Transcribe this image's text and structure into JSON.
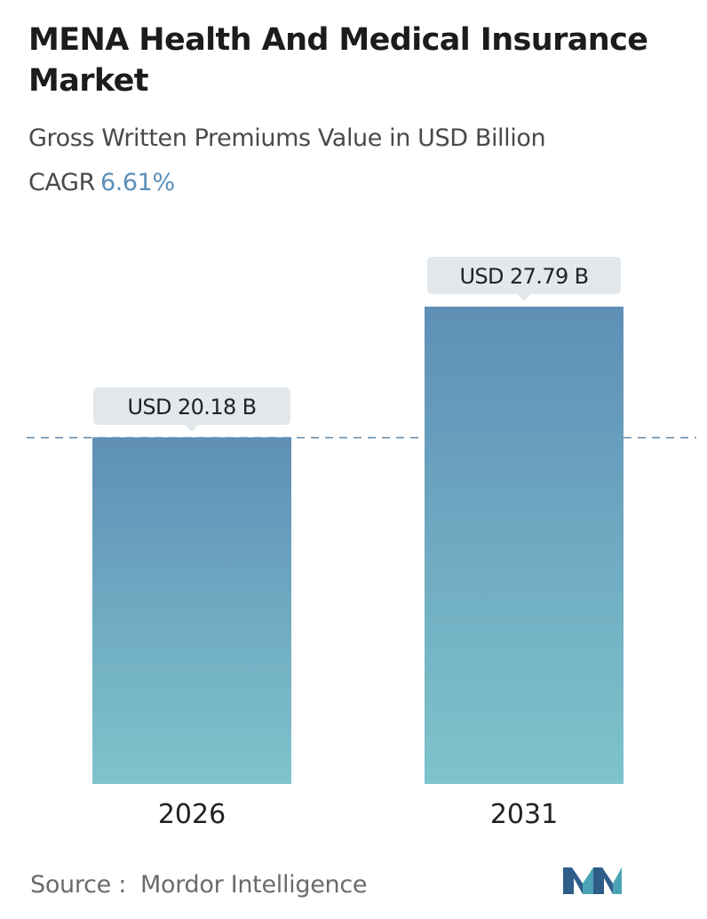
{
  "header": {
    "title": "MENA Health And Medical Insurance Market",
    "subtitle": "Gross Written Premiums Value in USD Billion",
    "cagr_label": "CAGR",
    "cagr_value": "6.61%"
  },
  "footer": {
    "source_label": "Source :",
    "source_name": "Mordor Intelligence",
    "logo_icon": "mordor-intelligence-logo-icon"
  },
  "colors": {
    "bar_top": "#5f8fb6",
    "bar_bottom": "#7ec4cc",
    "callout_bg": "#e2e8eb",
    "reference_line": "#5a86a8",
    "cagr_accent": "#5b8fb9"
  },
  "chart_data": {
    "type": "bar",
    "categories": [
      "2026",
      "2031"
    ],
    "values": [
      20.18,
      27.79
    ],
    "value_labels": [
      "USD 20.18 B",
      "USD 27.79 B"
    ],
    "title": "MENA Health And Medical Insurance Market",
    "xlabel": "",
    "ylabel": "",
    "ylim": [
      0,
      27.79
    ],
    "grid": false,
    "reference_line_value": 20.18
  }
}
